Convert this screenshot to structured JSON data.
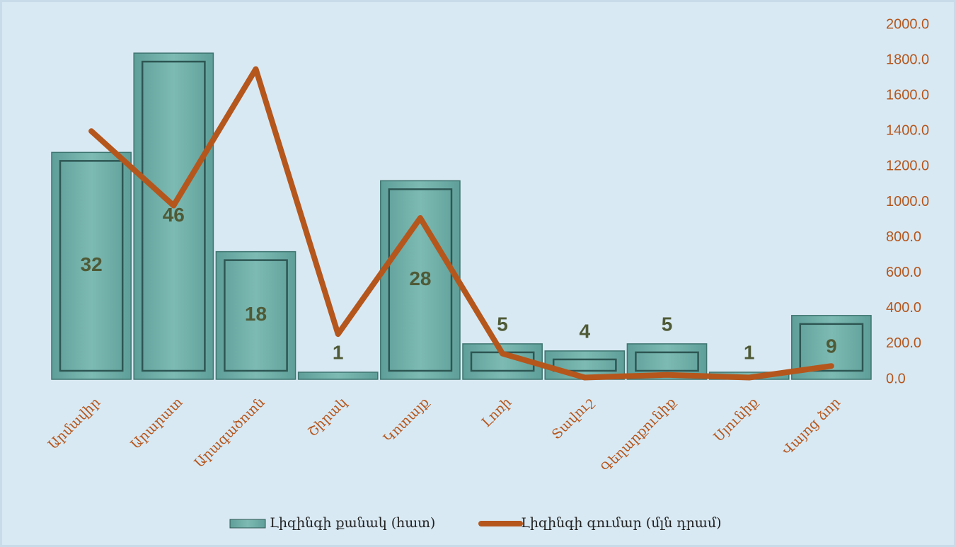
{
  "chart_data": {
    "type": "bar_line",
    "categories": [
      "Արմավիր",
      "Արարատ",
      "Արագածոտն",
      "Շիրակ",
      "Կոտայք",
      "Լոռի",
      "Տավուշ",
      "Գեղարքունիք",
      "Սյունիք",
      "Վայոց ձոր"
    ],
    "series": [
      {
        "name": "Լիզինգի քանակ (հատ)",
        "type": "bar",
        "color": "#6aaba5",
        "values": [
          32,
          46,
          18,
          1,
          28,
          5,
          4,
          5,
          1,
          9
        ]
      },
      {
        "name": "Լիզինգի գումար (մլն դրամ)",
        "type": "line",
        "axis": "y2",
        "color": "#b5561c",
        "values": [
          1400,
          980,
          1750,
          255,
          910,
          145,
          10,
          25,
          10,
          75
        ]
      }
    ],
    "ylim": [
      0,
      50
    ],
    "y2lim": [
      0,
      2000
    ],
    "y2ticks": [
      {
        "value": 0,
        "label": "0.0"
      },
      {
        "value": 200,
        "label": "200.0"
      },
      {
        "value": 400,
        "label": "400.0"
      },
      {
        "value": 600,
        "label": "600.0"
      },
      {
        "value": 800,
        "label": "800.0"
      },
      {
        "value": 1000,
        "label": "1000.0"
      },
      {
        "value": 1200,
        "label": "1200.0"
      },
      {
        "value": 1400,
        "label": "1400.0"
      },
      {
        "value": 1600,
        "label": "1600.0"
      },
      {
        "value": 1800,
        "label": "1800.0"
      },
      {
        "value": 2000,
        "label": "2000.0"
      }
    ],
    "legend": "bottom"
  }
}
